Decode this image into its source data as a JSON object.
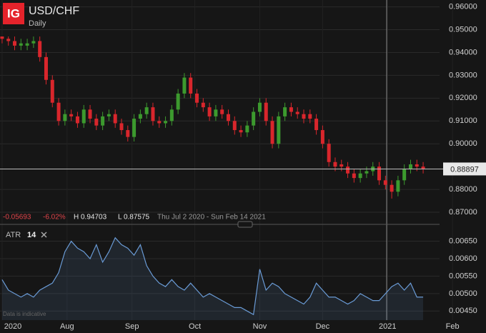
{
  "header": {
    "logo": "IG"
  },
  "chart_data": [
    {
      "type": "candlestick",
      "title": "USD/CHF",
      "subtitle": "Daily",
      "change": "-0.05693",
      "change_pct": "-6.02%",
      "high_label": "H 0.94703",
      "low_label": "L 0.87575",
      "date_range": "Thu Jul 2 2020 - Sun Feb 14 2021",
      "note": "Data is indicative",
      "up_color": "#3c9a2e",
      "down_color": "#d9262c",
      "grid": true,
      "last_price": 0.88897,
      "xlim": [
        -1,
        231
      ],
      "ylim": [
        0.865,
        0.963
      ],
      "yticks": [
        {
          "value": 0.96,
          "label": "0.96000"
        },
        {
          "value": 0.95,
          "label": "0.95000"
        },
        {
          "value": 0.94,
          "label": "0.94000"
        },
        {
          "value": 0.93,
          "label": "0.93000"
        },
        {
          "value": 0.92,
          "label": "0.92000"
        },
        {
          "value": 0.91,
          "label": "0.91000"
        },
        {
          "value": 0.9,
          "label": "0.90000"
        },
        {
          "value": 0.88,
          "label": "0.88000"
        },
        {
          "value": 0.87,
          "label": "0.87000"
        }
      ],
      "x": [
        0,
        3,
        6,
        9,
        12,
        15,
        18,
        21,
        24,
        27,
        30,
        33,
        36,
        39,
        42,
        45,
        48,
        51,
        54,
        57,
        60,
        63,
        66,
        69,
        72,
        75,
        78,
        81,
        84,
        87,
        90,
        93,
        96,
        99,
        102,
        105,
        108,
        111,
        114,
        117,
        120,
        123,
        126,
        129,
        132,
        135,
        138,
        141,
        144,
        147,
        150,
        153,
        156,
        159,
        162,
        165,
        168,
        171,
        174,
        177,
        180,
        183,
        186,
        189,
        192,
        195,
        198,
        201
      ],
      "open": [
        0.947,
        0.946,
        0.945,
        0.943,
        0.943,
        0.944,
        0.945,
        0.938,
        0.928,
        0.918,
        0.91,
        0.913,
        0.912,
        0.909,
        0.915,
        0.911,
        0.908,
        0.912,
        0.913,
        0.909,
        0.906,
        0.903,
        0.911,
        0.913,
        0.916,
        0.91,
        0.909,
        0.91,
        0.915,
        0.922,
        0.929,
        0.922,
        0.918,
        0.916,
        0.912,
        0.915,
        0.913,
        0.91,
        0.906,
        0.905,
        0.908,
        0.914,
        0.918,
        0.91,
        0.9,
        0.912,
        0.916,
        0.914,
        0.913,
        0.913,
        0.911,
        0.906,
        0.9,
        0.892,
        0.891,
        0.89,
        0.887,
        0.885,
        0.887,
        0.888,
        0.89,
        0.884,
        0.882,
        0.879,
        0.884,
        0.889,
        0.891,
        0.89
      ],
      "high": [
        0.947,
        0.947,
        0.947,
        0.946,
        0.946,
        0.947,
        0.947,
        0.94,
        0.93,
        0.92,
        0.915,
        0.915,
        0.914,
        0.917,
        0.917,
        0.913,
        0.914,
        0.915,
        0.915,
        0.911,
        0.908,
        0.913,
        0.915,
        0.918,
        0.918,
        0.912,
        0.912,
        0.917,
        0.924,
        0.931,
        0.931,
        0.924,
        0.92,
        0.918,
        0.917,
        0.917,
        0.915,
        0.912,
        0.908,
        0.91,
        0.916,
        0.92,
        0.92,
        0.912,
        0.914,
        0.918,
        0.918,
        0.916,
        0.915,
        0.915,
        0.913,
        0.908,
        0.902,
        0.894,
        0.893,
        0.892,
        0.889,
        0.889,
        0.89,
        0.892,
        0.892,
        0.886,
        0.884,
        0.886,
        0.891,
        0.893,
        0.893,
        0.892
      ],
      "low": [
        0.944,
        0.943,
        0.941,
        0.941,
        0.941,
        0.942,
        0.936,
        0.926,
        0.916,
        0.908,
        0.908,
        0.91,
        0.907,
        0.907,
        0.909,
        0.906,
        0.906,
        0.91,
        0.907,
        0.904,
        0.901,
        0.901,
        0.909,
        0.911,
        0.908,
        0.907,
        0.907,
        0.908,
        0.913,
        0.92,
        0.92,
        0.916,
        0.914,
        0.91,
        0.91,
        0.911,
        0.908,
        0.904,
        0.903,
        0.903,
        0.906,
        0.912,
        0.908,
        0.898,
        0.898,
        0.91,
        0.912,
        0.911,
        0.909,
        0.909,
        0.904,
        0.898,
        0.89,
        0.888,
        0.888,
        0.885,
        0.883,
        0.883,
        0.885,
        0.886,
        0.882,
        0.88,
        0.876,
        0.877,
        0.882,
        0.887,
        0.888,
        0.887
      ],
      "close": [
        0.946,
        0.945,
        0.943,
        0.944,
        0.944,
        0.945,
        0.938,
        0.928,
        0.918,
        0.91,
        0.913,
        0.912,
        0.909,
        0.915,
        0.911,
        0.908,
        0.912,
        0.913,
        0.909,
        0.906,
        0.903,
        0.911,
        0.913,
        0.916,
        0.91,
        0.909,
        0.91,
        0.915,
        0.922,
        0.929,
        0.922,
        0.918,
        0.916,
        0.912,
        0.915,
        0.913,
        0.91,
        0.906,
        0.905,
        0.908,
        0.914,
        0.918,
        0.91,
        0.9,
        0.912,
        0.916,
        0.914,
        0.913,
        0.911,
        0.911,
        0.906,
        0.9,
        0.892,
        0.89,
        0.89,
        0.887,
        0.885,
        0.887,
        0.888,
        0.89,
        0.884,
        0.882,
        0.879,
        0.884,
        0.889,
        0.891,
        0.89,
        0.889
      ]
    },
    {
      "type": "area",
      "title": "ATR",
      "period": 14,
      "color": "#6a9bd6",
      "ylim": [
        0.00424,
        0.0069
      ],
      "yticks": [
        {
          "value": 0.0065,
          "label": "0.00650"
        },
        {
          "value": 0.006,
          "label": "0.00600"
        },
        {
          "value": 0.0055,
          "label": "0.00550"
        },
        {
          "value": 0.005,
          "label": "0.00500"
        },
        {
          "value": 0.0045,
          "label": "0.00450"
        }
      ],
      "xticks": [
        {
          "value": 0,
          "label": "2020"
        },
        {
          "value": 31,
          "label": "Aug"
        },
        {
          "value": 62,
          "label": "Sep"
        },
        {
          "value": 92,
          "label": "Oct"
        },
        {
          "value": 123,
          "label": "Nov"
        },
        {
          "value": 153,
          "label": "Dec"
        },
        {
          "value": 184,
          "label": "2021"
        },
        {
          "value": 215,
          "label": "Feb"
        }
      ],
      "values": [
        0.0054,
        0.0051,
        0.005,
        0.0049,
        0.005,
        0.0049,
        0.0051,
        0.0052,
        0.0053,
        0.0056,
        0.0062,
        0.0065,
        0.0063,
        0.0062,
        0.006,
        0.0064,
        0.0059,
        0.0062,
        0.0066,
        0.0064,
        0.0063,
        0.0061,
        0.0064,
        0.0058,
        0.0055,
        0.0053,
        0.0052,
        0.0054,
        0.0052,
        0.0051,
        0.0053,
        0.0051,
        0.0049,
        0.005,
        0.0049,
        0.0048,
        0.0047,
        0.0046,
        0.0046,
        0.0045,
        0.0044,
        0.0057,
        0.0051,
        0.0053,
        0.0052,
        0.005,
        0.0049,
        0.0048,
        0.0047,
        0.0049,
        0.0053,
        0.0051,
        0.0049,
        0.0049,
        0.0048,
        0.0047,
        0.0048,
        0.005,
        0.0049,
        0.0048,
        0.0048,
        0.005,
        0.0052,
        0.0053,
        0.0051,
        0.0053,
        0.0049,
        0.0049
      ]
    }
  ]
}
